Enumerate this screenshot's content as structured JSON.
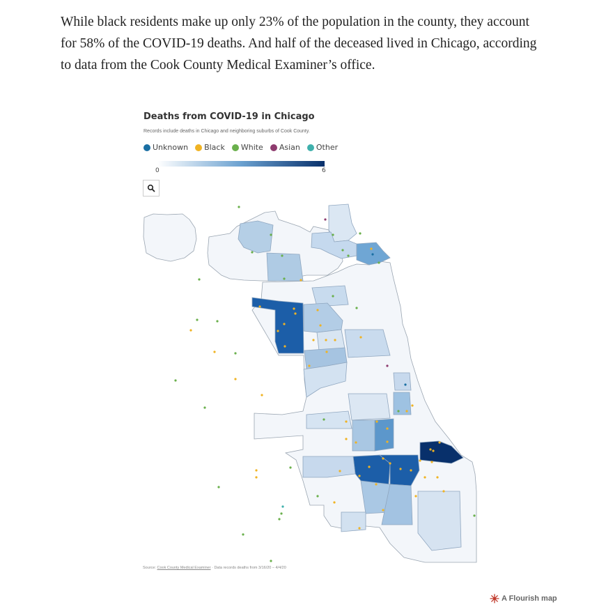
{
  "article": {
    "paragraph": "While black residents make up only 23% of the population in the county, they account for 58% of the COVID-19 deaths. And half of the deceased lived in Chicago, according to data from the Cook County Medical Examiner’s office."
  },
  "chart": {
    "title": "Deaths from COVID-19 in Chicago",
    "subtitle": "Records include deaths in Chicago and neighboring suburbs of Cook County.",
    "legend": [
      {
        "label": "Unknown",
        "color": "#1a6fa3"
      },
      {
        "label": "Black",
        "color": "#f0b323"
      },
      {
        "label": "White",
        "color": "#6ab04c"
      },
      {
        "label": "Asian",
        "color": "#8e3b6e"
      },
      {
        "label": "Other",
        "color": "#3fb0ac"
      }
    ],
    "scale_min": "0",
    "scale_max": "6",
    "zoom_icon": "search-icon",
    "source_prefix": "Source:",
    "source_link": "Cook County Medical Examiner",
    "source_suffix": "· Data records deaths from 3/16/20 – 4/4/20",
    "flourish_label": "A Flourish map"
  },
  "chart_data": {
    "type": "choropleth",
    "color_scale": {
      "min": 0,
      "max": 6,
      "low_color": "#ffffff",
      "high_color": "#08306b"
    },
    "category_colors": {
      "Unknown": "#1a6fa3",
      "Black": "#f0b323",
      "White": "#6ab04c",
      "Asian": "#8e3b6e",
      "Other": "#3fb0ac"
    }
  }
}
